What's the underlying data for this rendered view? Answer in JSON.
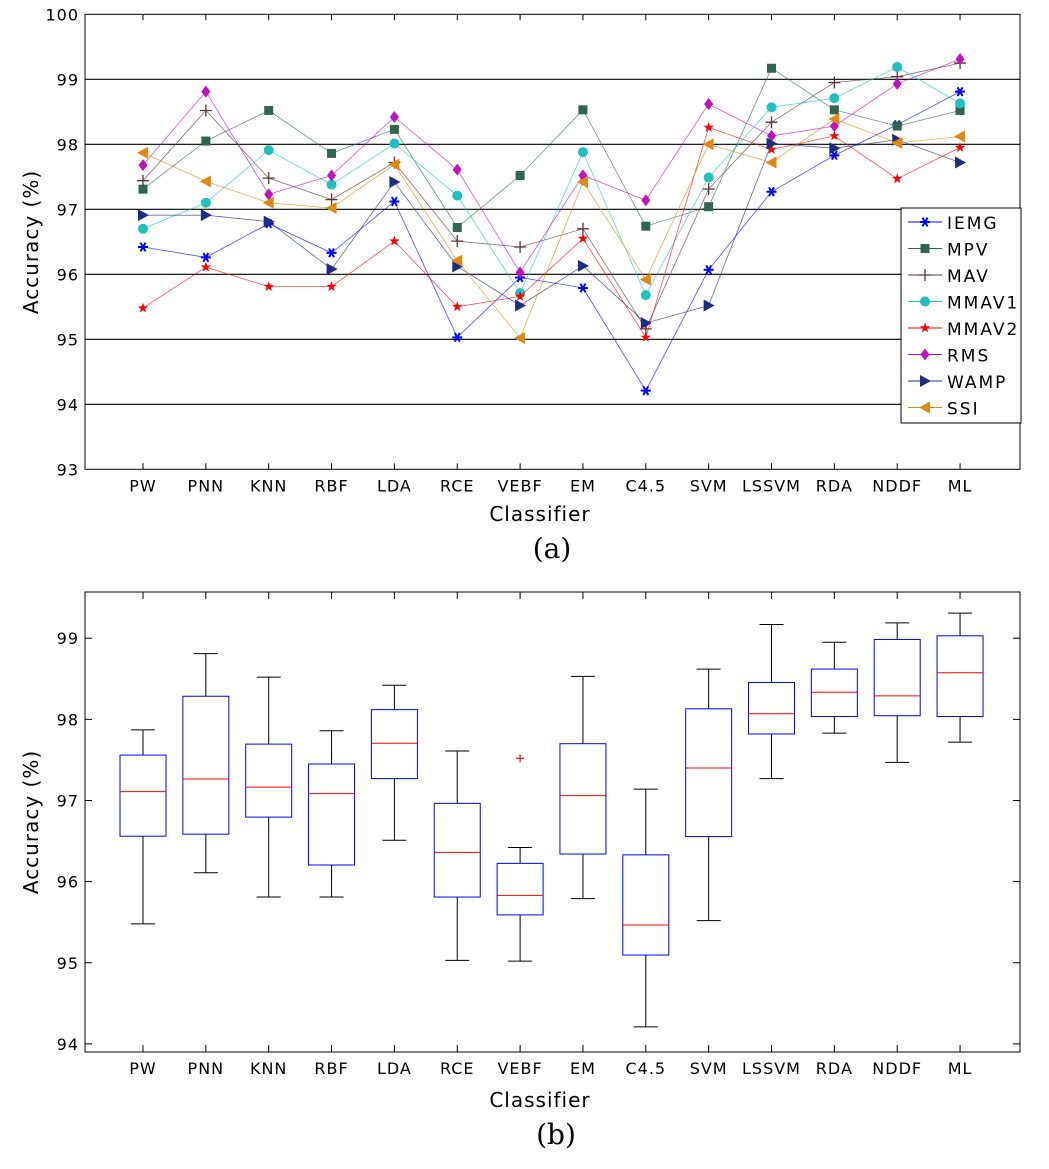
{
  "chart_data": [
    {
      "type": "line",
      "panel_label": "(a)",
      "xlabel": "Classifier",
      "ylabel": "Accuracy (%)",
      "ylim": [
        93,
        100
      ],
      "yticks": [
        "93",
        "94",
        "95",
        "96",
        "97",
        "98",
        "99",
        "100"
      ],
      "grid": "horizontal",
      "legend_position": "right-middle",
      "categories": [
        "PW",
        "PNN",
        "KNN",
        "RBF",
        "LDA",
        "RCE",
        "VEBF",
        "EM",
        "C4.5",
        "SVM",
        "LSSVM",
        "RDA",
        "NDDF",
        "ML"
      ],
      "series": [
        {
          "name": "IEMG",
          "color": "#0000ff",
          "marker": "asterisk",
          "values": [
            96.42,
            96.26,
            96.78,
            96.33,
            97.12,
            95.03,
            95.95,
            95.79,
            94.21,
            96.07,
            97.27,
            97.83,
            98.3,
            98.81
          ]
        },
        {
          "name": "MPV",
          "color": "#2e6650",
          "marker": "square",
          "values": [
            97.31,
            98.05,
            98.52,
            97.86,
            98.23,
            96.72,
            97.52,
            98.53,
            96.74,
            97.04,
            99.17,
            98.53,
            98.28,
            98.52
          ]
        },
        {
          "name": "MAV",
          "color": "#5a3535",
          "marker": "plus",
          "values": [
            97.44,
            98.52,
            97.48,
            97.15,
            97.72,
            96.51,
            96.42,
            96.7,
            95.16,
            97.31,
            98.34,
            98.95,
            99.04,
            99.25
          ]
        },
        {
          "name": "MMAV1",
          "color": "#20c0c0",
          "marker": "circle",
          "values": [
            96.7,
            97.1,
            97.91,
            97.38,
            98.01,
            97.21,
            95.71,
            97.88,
            95.68,
            97.49,
            98.57,
            98.71,
            99.19,
            98.63
          ]
        },
        {
          "name": "MMAV2",
          "color": "#ff0000",
          "marker": "star",
          "values": [
            95.48,
            96.11,
            95.81,
            95.81,
            96.51,
            95.5,
            95.66,
            96.55,
            95.03,
            98.26,
            97.92,
            98.13,
            97.47,
            97.95
          ]
        },
        {
          "name": "RMS",
          "color": "#c010c0",
          "marker": "diamond",
          "values": [
            97.68,
            98.81,
            97.23,
            97.52,
            98.42,
            97.61,
            96.03,
            97.52,
            97.14,
            98.62,
            98.13,
            98.28,
            98.93,
            99.31
          ]
        },
        {
          "name": "WAMP",
          "color": "#1f2d80",
          "marker": "triangle-right",
          "values": [
            96.91,
            96.91,
            96.81,
            96.08,
            97.42,
            96.12,
            95.52,
            96.13,
            95.25,
            95.52,
            98.01,
            97.94,
            98.07,
            97.72
          ]
        },
        {
          "name": "SSI",
          "color": "#e08810",
          "marker": "triangle-left",
          "values": [
            97.87,
            97.43,
            97.1,
            97.02,
            97.69,
            96.21,
            95.02,
            97.42,
            95.92,
            98.0,
            97.72,
            98.39,
            98.02,
            98.12
          ]
        }
      ]
    },
    {
      "type": "box",
      "panel_label": "(b)",
      "xlabel": "Classifier",
      "ylabel": "Accuracy (%)",
      "ylim": [
        93.9,
        99.57
      ],
      "yticks": [
        "94",
        "95",
        "96",
        "97",
        "98",
        "99"
      ],
      "grid": "off",
      "box_color": "#0000ff",
      "median_color": "#ff0000",
      "whisker_color": "#000000",
      "categories": [
        "PW",
        "PNN",
        "KNN",
        "RBF",
        "LDA",
        "RCE",
        "VEBF",
        "EM",
        "C4.5",
        "SVM",
        "LSSVM",
        "RDA",
        "NDDF",
        "ML"
      ],
      "source": "distribution of the 8 feature accuracies per classifier from panel (a)"
    }
  ]
}
